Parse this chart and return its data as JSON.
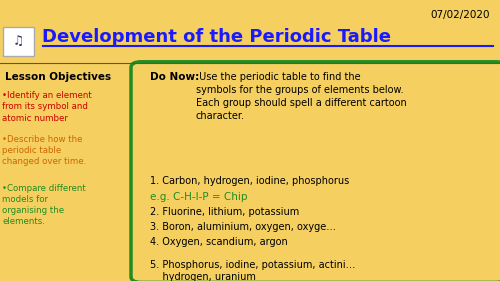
{
  "bg_color": "#F5D060",
  "date": "07/02/2020",
  "title": "Development of the Periodic Table",
  "title_color": "#1a1aff",
  "lesson_objectives_title": "Lesson Objectives",
  "objectives": [
    "Identify an element\nfrom its symbol and\natomic number",
    "Describe how the\nperiodic table\nchanged over time.",
    "Compare different\nmodels for\norganising the\nelements."
  ],
  "objectives_colors": [
    "#cc0000",
    "#cc6600",
    "#228B22"
  ],
  "do_now_box_border": "#228B22",
  "do_now_bold": "Do Now:",
  "do_now_intro": " Use the periodic table to find the\nsymbols for the groups of elements below.\nEach group should spell a different cartoon\ncharacter.",
  "items": [
    "1. Carbon, hydrogen, iodine, phosphorus",
    "e.g. C-H-I-P = Chip",
    "2. Fluorine, lithium, potassium",
    "3. Boron, aluminium, oxygen, oxyge…",
    "4. Oxygen, scandium, argon",
    "5. Phosphorus, iodine, potassium, actini…\n    hydrogen, uranium"
  ],
  "item_colors": [
    "#000000",
    "#228B22",
    "#000000",
    "#000000",
    "#000000",
    "#000000"
  ],
  "item_fontsizes": [
    7.0,
    7.5,
    7.0,
    7.0,
    7.0,
    7.0
  ]
}
